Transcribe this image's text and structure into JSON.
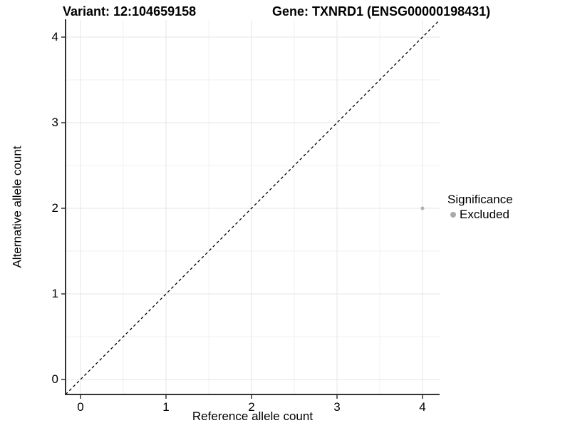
{
  "chart_data": {
    "type": "scatter",
    "title_left": "Variant: 12:104659158",
    "title_right": "Gene: TXNRD1 (ENSG00000198431)",
    "xlabel": "Reference allele count",
    "ylabel": "Alternative allele count",
    "xlim": [
      -0.175,
      4.2
    ],
    "ylim": [
      -0.175,
      4.2
    ],
    "x_ticks": [
      0,
      1,
      2,
      3,
      4
    ],
    "y_ticks": [
      0,
      1,
      2,
      3,
      4
    ],
    "grid": {
      "show_major": true,
      "show_minor": true,
      "minor_step": 0.5,
      "major_color": "#e5e5e5",
      "minor_color": "#f2f2f2"
    },
    "axis_color": "#333333",
    "tick_color": "#333333",
    "background_color": "#ffffff",
    "reference_line": {
      "kind": "identity",
      "style": "dashed",
      "color": "#000000"
    },
    "series": [
      {
        "name": "Excluded",
        "color": "#b0b0b0",
        "point_radius": 2.5,
        "points": [
          {
            "x": 4,
            "y": 2
          }
        ]
      }
    ],
    "legend": {
      "title": "Significance",
      "position": "right",
      "items": [
        {
          "label": "Excluded",
          "color": "#a9a9a9"
        }
      ]
    }
  }
}
